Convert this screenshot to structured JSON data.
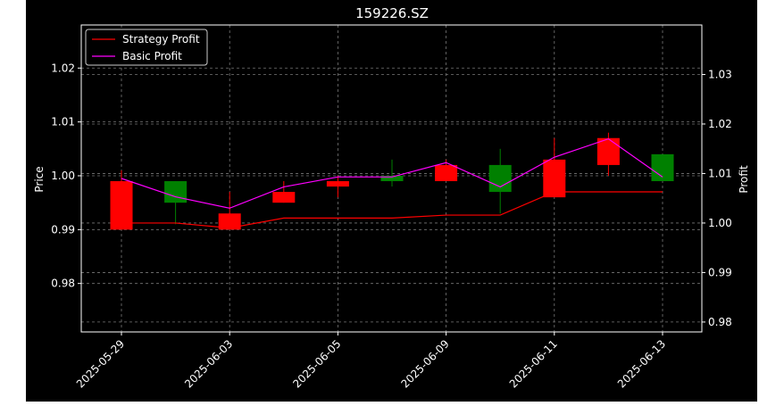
{
  "chart_data": {
    "type": "candlestick",
    "title": "159226.SZ",
    "xlabel": "",
    "ylabel_left": "Price",
    "ylabel_right": "Profit",
    "x_tick_labels": [
      "2025-05-29",
      "2025-06-03",
      "2025-06-05",
      "2025-06-09",
      "2025-06-11",
      "2025-06-13"
    ],
    "dates": [
      "2025-05-29",
      "2025-05-30",
      "2025-06-03",
      "2025-06-04",
      "2025-06-05",
      "2025-06-06",
      "2025-06-09",
      "2025-06-10",
      "2025-06-11",
      "2025-06-12",
      "2025-06-13"
    ],
    "candles": [
      {
        "date": "2025-05-29",
        "open": 0.999,
        "high": 1.001,
        "low": 0.99,
        "close": 0.99
      },
      {
        "date": "2025-05-30",
        "open": 0.995,
        "high": 0.999,
        "low": 0.991,
        "close": 0.999
      },
      {
        "date": "2025-06-03",
        "open": 0.993,
        "high": 0.997,
        "low": 0.99,
        "close": 0.99
      },
      {
        "date": "2025-06-04",
        "open": 0.997,
        "high": 0.999,
        "low": 0.995,
        "close": 0.995
      },
      {
        "date": "2025-06-05",
        "open": 0.999,
        "high": 1.0,
        "low": 0.996,
        "close": 0.998
      },
      {
        "date": "2025-06-06",
        "open": 0.999,
        "high": 1.003,
        "low": 0.998,
        "close": 1.0
      },
      {
        "date": "2025-06-09",
        "open": 1.002,
        "high": 1.003,
        "low": 0.999,
        "close": 0.999
      },
      {
        "date": "2025-06-10",
        "open": 0.997,
        "high": 1.005,
        "low": 0.993,
        "close": 1.002
      },
      {
        "date": "2025-06-11",
        "open": 1.003,
        "high": 1.007,
        "low": 0.996,
        "close": 0.996
      },
      {
        "date": "2025-06-12",
        "open": 1.007,
        "high": 1.008,
        "low": 1.0,
        "close": 1.002
      },
      {
        "date": "2025-06-13",
        "open": 0.999,
        "high": 1.004,
        "low": 0.999,
        "close": 1.004
      }
    ],
    "series": [
      {
        "name": "Strategy Profit",
        "color": "#ff0000",
        "axis": "right",
        "values": [
          1.0,
          1.0,
          0.999,
          1.001,
          1.001,
          1.001,
          1.0016,
          1.0016,
          1.0063,
          1.0063,
          1.0063
        ]
      },
      {
        "name": "Basic Profit",
        "color": "#ff00ff",
        "axis": "right",
        "values": [
          1.009,
          1.0053,
          1.003,
          1.0073,
          1.0093,
          1.0093,
          1.0122,
          1.0073,
          1.0133,
          1.017,
          1.0093
        ]
      }
    ],
    "ylim_left": [
      0.971,
      1.028
    ],
    "ylim_right": [
      0.978,
      1.04
    ],
    "y_ticks_left": [
      "0.98",
      "0.99",
      "1.00",
      "1.01",
      "1.02"
    ],
    "y_ticks_right": [
      "0.98",
      "0.99",
      "1.00",
      "1.01",
      "1.02",
      "1.03"
    ],
    "colors": {
      "up": "#008000",
      "down": "#ff0000",
      "background": "#000000",
      "text": "#ffffff",
      "grid": "#777777"
    },
    "grid": true,
    "legend_position": "top-left"
  }
}
